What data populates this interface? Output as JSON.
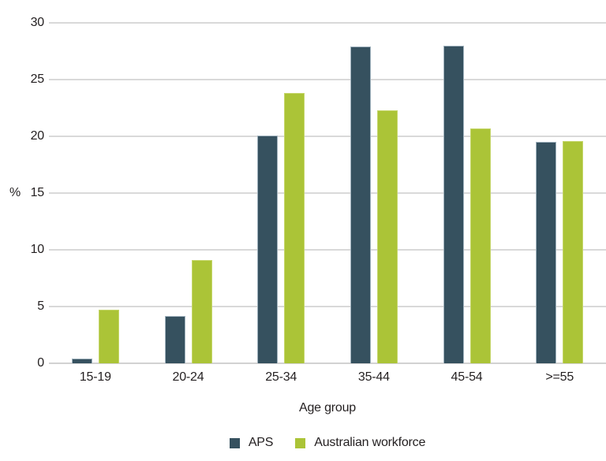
{
  "chart_data": {
    "type": "bar",
    "title": "",
    "categories": [
      "15-19",
      "20-24",
      "25-34",
      "35-44",
      "45-54",
      ">=55"
    ],
    "series": [
      {
        "name": "APS",
        "color": "#36515f",
        "border_color": "#a0b2bd",
        "values": [
          0.4,
          4.2,
          20.1,
          27.9,
          28.0,
          19.5
        ]
      },
      {
        "name": "Australian workforce",
        "color": "#abc437",
        "border_color": "#c5d66b",
        "values": [
          4.7,
          9.1,
          23.8,
          22.3,
          20.7,
          19.6
        ]
      }
    ],
    "xlabel": "Age group",
    "ylabel": "%",
    "ylim": [
      0,
      30
    ],
    "yticks": [
      0,
      5,
      10,
      15,
      20,
      25,
      30
    ],
    "grid": true,
    "legend_position": "bottom"
  },
  "style": {
    "grid_color": "#d9d9d9",
    "axis_text_color": "#231f20",
    "background": "#ffffff"
  }
}
